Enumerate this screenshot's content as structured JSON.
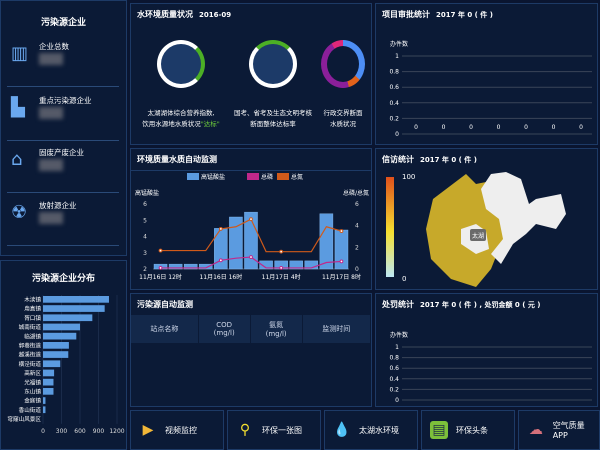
{
  "enterprise": {
    "title": "污染源企业",
    "items": [
      {
        "label": "企业总数",
        "icon": "building-icon"
      },
      {
        "label": "重点污染源企业",
        "icon": "warning-building-icon"
      },
      {
        "label": "固废产废企业",
        "icon": "factory-icon"
      },
      {
        "label": "放射源企业",
        "icon": "radiation-icon"
      }
    ]
  },
  "distribution": {
    "title": "污染源企业分布",
    "chart_data": {
      "type": "bar",
      "orientation": "horizontal",
      "categories": [
        "木渎镇",
        "甪直镇",
        "胥口镇",
        "城南街道",
        "临湖镇",
        "郭巷街道",
        "越溪街道",
        "横泾街道",
        "高新区",
        "光福镇",
        "东山镇",
        "金庭镇",
        "香山街道",
        "穹窿山风景区"
      ],
      "values": [
        1070,
        1000,
        800,
        600,
        540,
        420,
        410,
        280,
        180,
        170,
        170,
        40,
        40,
        0
      ],
      "xlim": [
        0,
        1200
      ],
      "xticks": [
        "0",
        "300",
        "600",
        "900",
        "1200"
      ],
      "color": "#5b9be0"
    }
  },
  "water": {
    "title": "水环境质量状况",
    "date": "2016-09",
    "items": [
      {
        "line1": "太湖湖体综合营养指数,",
        "line2": "饮用水源地水质状况",
        "highlight": "\"达标\""
      },
      {
        "line1": "国考、省考及生态文明考核",
        "line2": "断面整体达标率",
        "highlight": ""
      },
      {
        "line1": "行政交界断面",
        "line2": "水质状况",
        "highlight": ""
      }
    ],
    "colors": {
      "green": "#4caf25",
      "blue": "#4d8ef5",
      "purple": "#8b1f9a",
      "orange": "#e2621b",
      "pink": "#e0287a"
    }
  },
  "auto": {
    "title": "环境质量水质自动监测",
    "chart_data": {
      "type": "bar+line",
      "legend": [
        "高锰酸盐",
        "总磷",
        "总氮"
      ],
      "ylabel_left": "高锰酸盐",
      "ylabel_right": "总磷/总氮",
      "ylim_left": [
        2,
        6
      ],
      "ylim_right": [
        0,
        6
      ],
      "yticks_left": [
        "2",
        "3",
        "4",
        "5",
        "6"
      ],
      "yticks_right": [
        "0",
        "2",
        "4",
        "6"
      ],
      "xticks": [
        "11月16日 12时",
        "11月16日 16时",
        "11月17日 4时",
        "11月17日 8时"
      ],
      "series": [
        {
          "name": "高锰酸盐",
          "type": "bar",
          "values": [
            2.3,
            2.3,
            2.3,
            2.3,
            4.5,
            5.2,
            5.5,
            2.5,
            2.5,
            2.5,
            2.5,
            5.4,
            4.4
          ],
          "color": "#5b9be0"
        },
        {
          "name": "总磷",
          "type": "line",
          "values": [
            0.1,
            0.1,
            0.1,
            0.1,
            0.8,
            1.0,
            1.1,
            0.1,
            0.1,
            0.1,
            0.1,
            0.6,
            0.7
          ],
          "color": "#c0288a"
        },
        {
          "name": "总氮",
          "type": "line",
          "values": [
            1.7,
            1.7,
            1.7,
            1.7,
            3.7,
            3.9,
            4.6,
            1.6,
            1.6,
            1.6,
            1.6,
            3.9,
            3.5
          ],
          "color": "#d05a1a"
        }
      ]
    }
  },
  "project": {
    "title": "项目审批统计",
    "sub": "2017 年 0 ( 件 )",
    "chart_data": {
      "type": "bar",
      "ylabel": "办件数",
      "ylim": [
        0,
        1
      ],
      "yticks": [
        "1",
        "0.8",
        "0.6",
        "0.4",
        "0.2",
        "0"
      ],
      "values": [
        0,
        0,
        0,
        0,
        0,
        0,
        0
      ]
    }
  },
  "petition": {
    "title": "信访统计",
    "sub": "2017 年 0 ( 件 )",
    "legend_max": "100",
    "legend_min": "0",
    "lake_label": "太湖"
  },
  "source": {
    "title": "污染源自动监测",
    "columns": [
      [
        "站点名称",
        ""
      ],
      [
        "COD",
        "(mg/l)"
      ],
      [
        "氨氮",
        "(mg/l)"
      ],
      [
        "监测时间",
        ""
      ]
    ]
  },
  "penalty": {
    "title": "处罚统计",
    "sub": "2017 年 0 ( 件 ) , 处罚金额 0 ( 元 )",
    "chart_data": {
      "type": "bar",
      "ylabel": "办件数",
      "ylim": [
        0,
        1
      ],
      "yticks": [
        "1",
        "0.8",
        "0.6",
        "0.4",
        "0.2",
        "0"
      ]
    }
  },
  "nav": [
    {
      "label": "视频监控",
      "icon": "video-icon",
      "color": "#f2b738"
    },
    {
      "label": "环保一张图",
      "icon": "map-pin-icon",
      "color": "#f5e030"
    },
    {
      "label": "太湖水环境",
      "icon": "water-drop-icon",
      "color": "#7fd3f5"
    },
    {
      "label": "环保头条",
      "icon": "news-icon",
      "color": "#7cc03a"
    },
    {
      "label": "空气质量APP",
      "icon": "cloud-icon",
      "color": "#d5707a"
    }
  ]
}
